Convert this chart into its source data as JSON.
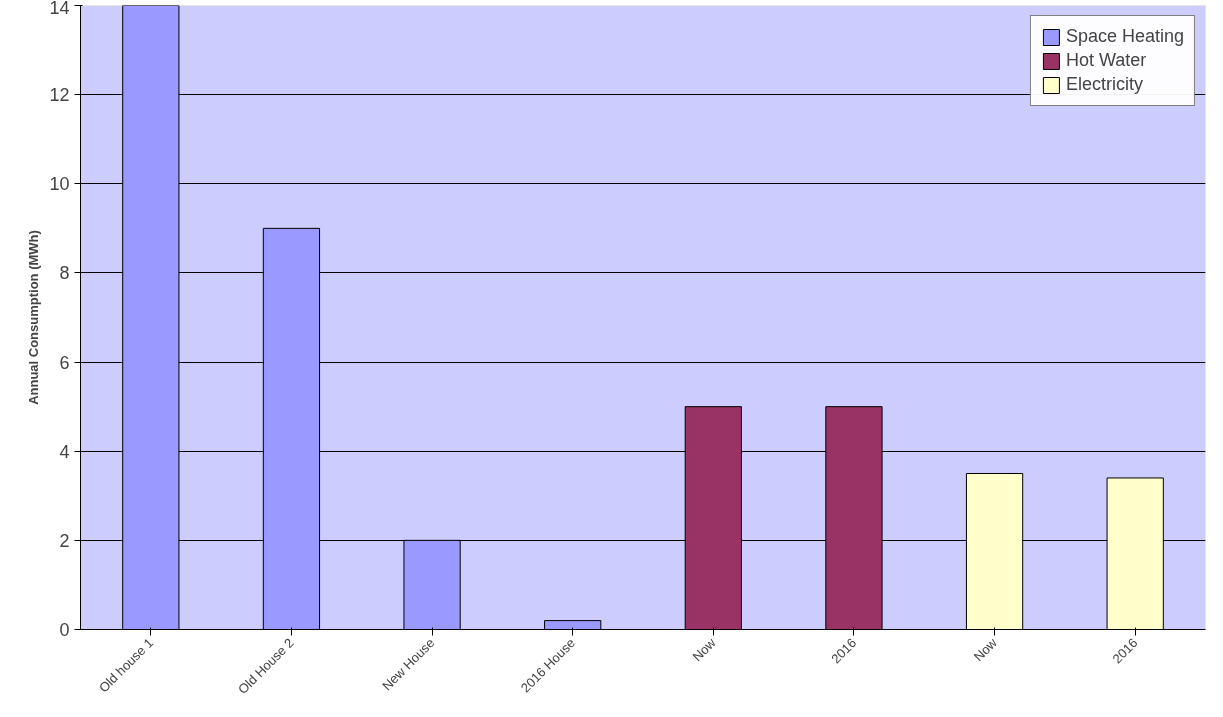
{
  "chart_data": {
    "type": "bar",
    "ylabel": "Annual Consumption (MWh)",
    "categories": [
      "Old house 1",
      "Old House 2",
      "New House",
      "2016 House",
      "Now",
      "2016",
      "Now",
      "2016"
    ],
    "series": [
      {
        "name": "Space Heating",
        "color": "#9999ff",
        "values": [
          14,
          9,
          2,
          0.2,
          null,
          null,
          null,
          null
        ]
      },
      {
        "name": "Hot Water",
        "color": "#993366",
        "values": [
          null,
          null,
          null,
          null,
          5,
          5,
          null,
          null
        ]
      },
      {
        "name": "Electricity",
        "color": "#ffffcc",
        "values": [
          null,
          null,
          null,
          null,
          null,
          null,
          3.5,
          3.4
        ]
      }
    ],
    "ylim": [
      0,
      14
    ],
    "yticks": [
      0,
      2,
      4,
      6,
      8,
      10,
      12,
      14
    ],
    "grid": "y",
    "legend": "top right"
  }
}
